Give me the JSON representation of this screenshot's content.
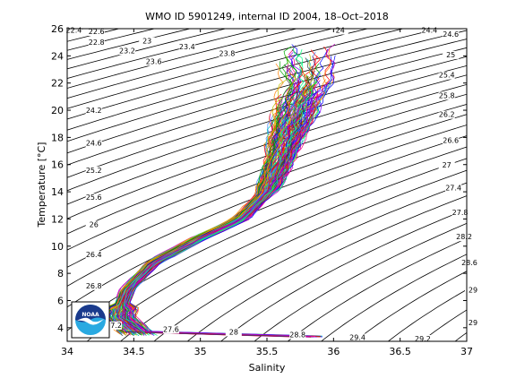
{
  "chart_data": {
    "type": "line",
    "title": "WMO ID 5901249, internal ID 2004, 18–Oct–2018",
    "xlabel": "Salinity",
    "ylabel": "Temperature [°C]",
    "xlim": [
      34,
      37
    ],
    "ylim": [
      3,
      26
    ],
    "x_ticks": [
      34,
      34.5,
      35,
      35.5,
      36,
      36.5,
      37
    ],
    "y_ticks": [
      4,
      6,
      8,
      10,
      12,
      14,
      16,
      18,
      20,
      22,
      24,
      26
    ],
    "grid": false,
    "density_contour_labels": [
      {
        "label": "22.4",
        "x": 34.05,
        "y": 25.7
      },
      {
        "label": "22.6",
        "x": 34.22,
        "y": 25.6
      },
      {
        "label": "22.8",
        "x": 34.22,
        "y": 24.8
      },
      {
        "label": "23",
        "x": 34.6,
        "y": 24.9
      },
      {
        "label": "23.2",
        "x": 34.45,
        "y": 24.2
      },
      {
        "label": "23.4",
        "x": 34.9,
        "y": 24.5
      },
      {
        "label": "23.6",
        "x": 34.65,
        "y": 23.4
      },
      {
        "label": "23.8",
        "x": 35.2,
        "y": 24.0
      },
      {
        "label": "24",
        "x": 36.05,
        "y": 25.7
      },
      {
        "label": "24.2",
        "x": 34.2,
        "y": 19.8
      },
      {
        "label": "24.4",
        "x": 36.72,
        "y": 25.7
      },
      {
        "label": "24.6",
        "x": 36.88,
        "y": 25.4
      },
      {
        "label": "24.6",
        "x": 34.2,
        "y": 17.4
      },
      {
        "label": "25",
        "x": 36.88,
        "y": 23.9
      },
      {
        "label": "25.2",
        "x": 34.2,
        "y": 15.4
      },
      {
        "label": "25.4",
        "x": 36.85,
        "y": 22.4
      },
      {
        "label": "25.6",
        "x": 34.2,
        "y": 13.4
      },
      {
        "label": "25.8",
        "x": 36.85,
        "y": 20.9
      },
      {
        "label": "26",
        "x": 34.2,
        "y": 11.4
      },
      {
        "label": "26.2",
        "x": 36.85,
        "y": 19.5
      },
      {
        "label": "26.4",
        "x": 34.2,
        "y": 9.2
      },
      {
        "label": "26.6",
        "x": 36.88,
        "y": 17.6
      },
      {
        "label": "26.8",
        "x": 34.2,
        "y": 6.9
      },
      {
        "label": "27",
        "x": 36.85,
        "y": 15.8
      },
      {
        "label": "27.2",
        "x": 34.35,
        "y": 4.0
      },
      {
        "label": "27.4",
        "x": 36.9,
        "y": 14.1
      },
      {
        "label": "27.6",
        "x": 34.78,
        "y": 3.7
      },
      {
        "label": "27.8",
        "x": 36.95,
        "y": 12.3
      },
      {
        "label": "28",
        "x": 35.25,
        "y": 3.5
      },
      {
        "label": "28.2",
        "x": 36.98,
        "y": 10.5
      },
      {
        "label": "28.8",
        "x": 35.73,
        "y": 3.3
      },
      {
        "label": "28.6",
        "x": 37.02,
        "y": 8.6
      },
      {
        "label": "29.4",
        "x": 36.18,
        "y": 3.1
      },
      {
        "label": "29",
        "x": 37.05,
        "y": 6.6
      },
      {
        "label": "29.2",
        "x": 36.67,
        "y": 3.0
      },
      {
        "label": "29",
        "x": 37.12,
        "y": 4.2
      }
    ],
    "profile_envelope": {
      "description_points": [
        {
          "salinity": 34.55,
          "temperature": 3.4
        },
        {
          "salinity": 34.38,
          "temperature": 4.8
        },
        {
          "salinity": 34.45,
          "temperature": 6.8
        },
        {
          "salinity": 34.65,
          "temperature": 8.8
        },
        {
          "salinity": 35.0,
          "temperature": 10.6
        },
        {
          "salinity": 35.3,
          "temperature": 12.0
        },
        {
          "salinity": 35.5,
          "temperature": 14.0
        },
        {
          "salinity": 35.6,
          "temperature": 16.5
        },
        {
          "salinity": 35.7,
          "temperature": 19.5
        },
        {
          "salinity": 35.8,
          "temperature": 22.0
        },
        {
          "salinity": 35.8,
          "temperature": 24.5
        }
      ]
    }
  },
  "logo": {
    "text": "NOAA",
    "colors": {
      "outer": "#ffffff",
      "top": "#1a3a8c",
      "bottom": "#29a9e1",
      "bird": "#ffffff"
    }
  }
}
